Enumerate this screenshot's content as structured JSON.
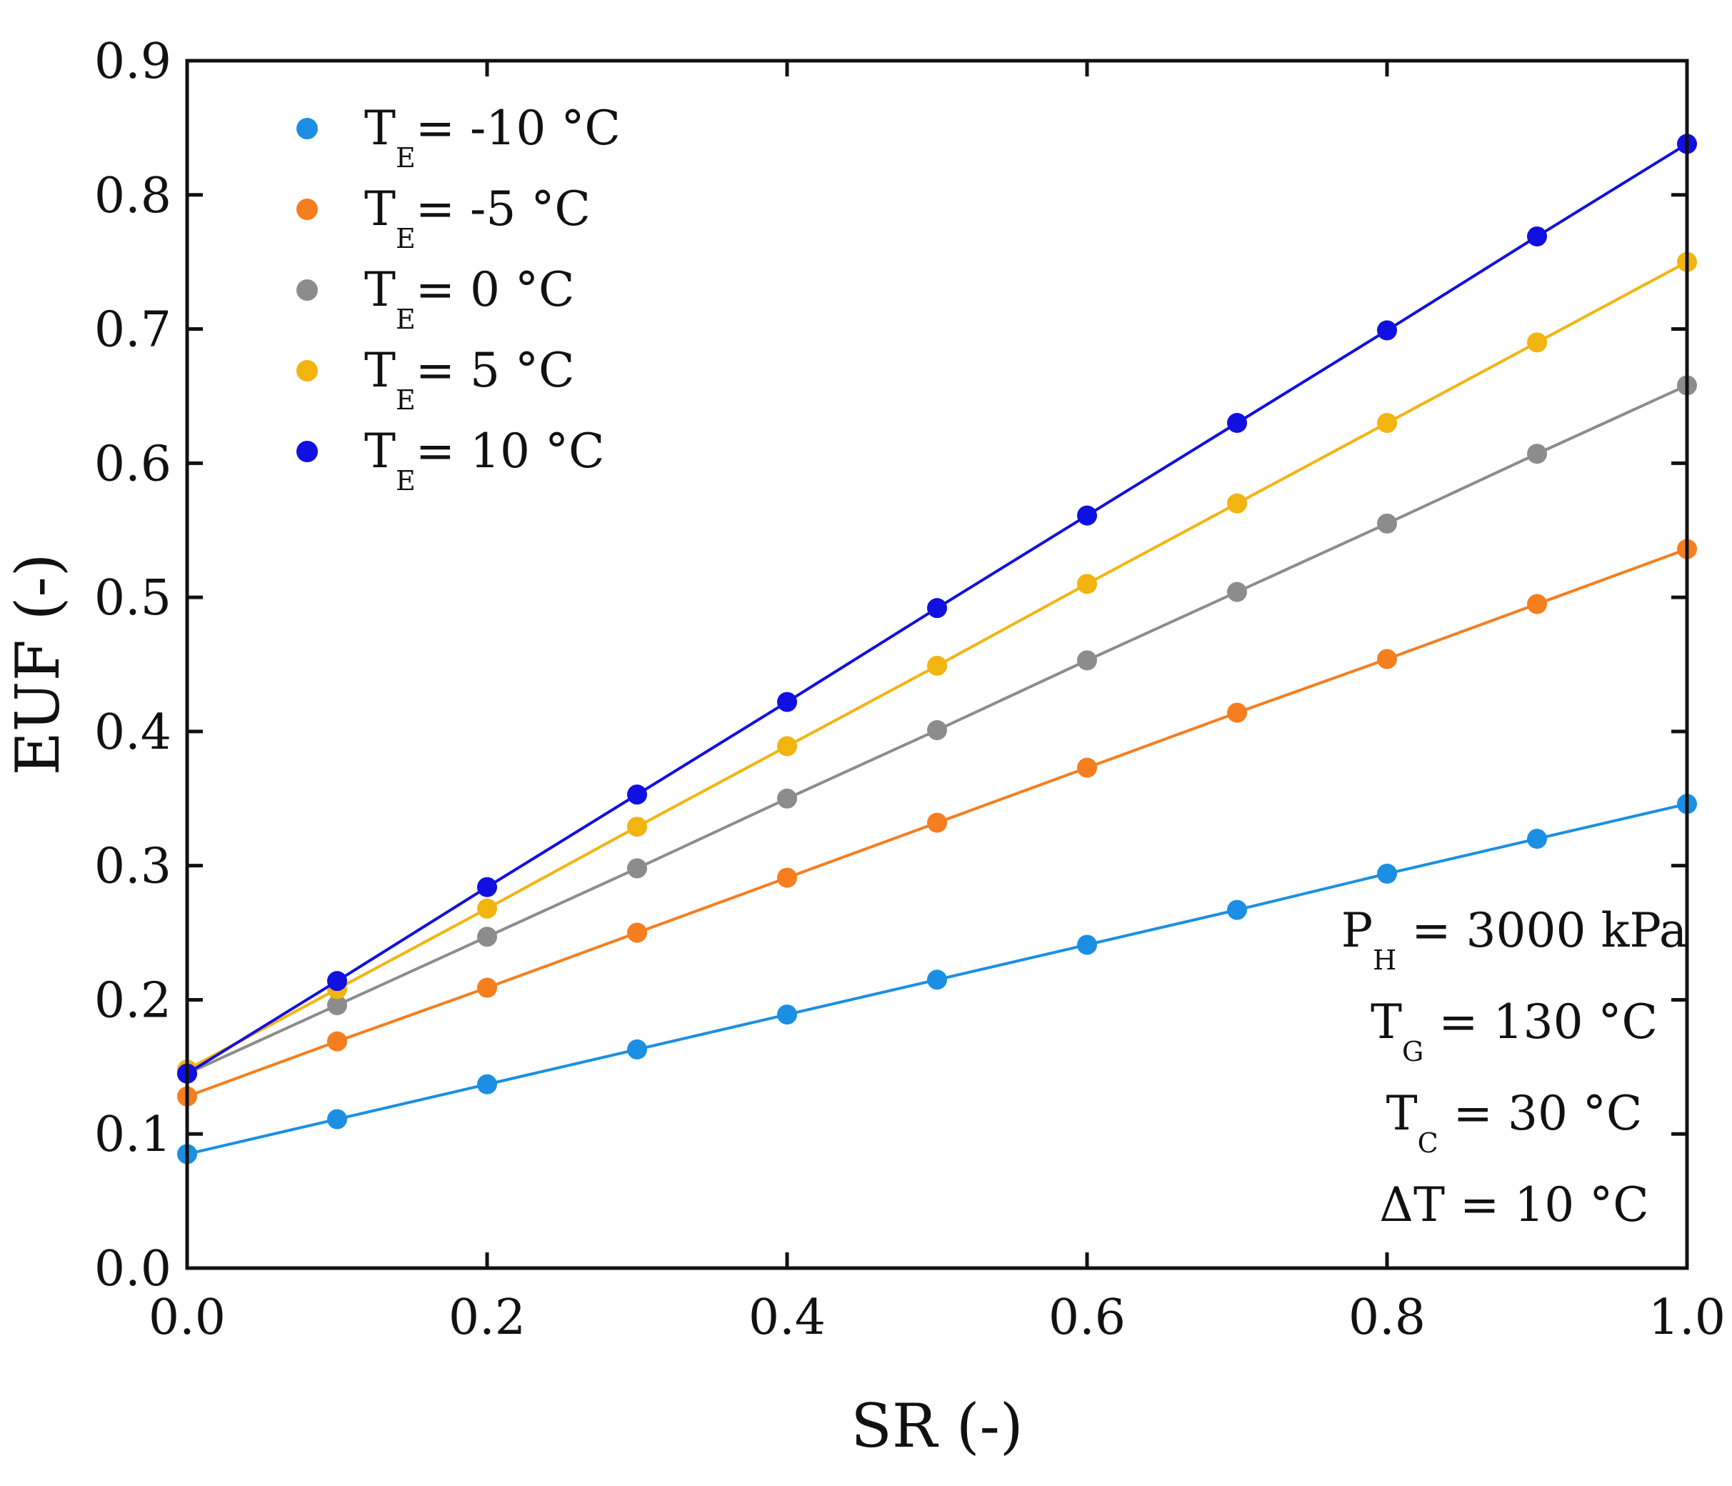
{
  "chart_data": {
    "type": "line",
    "xlabel": "SR (-)",
    "ylabel": "EUF (-)",
    "xlim": [
      0,
      1
    ],
    "ylim": [
      0,
      0.9
    ],
    "x_ticks": [
      "0.0",
      "0.2",
      "0.4",
      "0.6",
      "0.8",
      "1.0"
    ],
    "y_ticks": [
      "0.0",
      "0.1",
      "0.2",
      "0.3",
      "0.4",
      "0.5",
      "0.6",
      "0.7",
      "0.8",
      "0.9"
    ],
    "x": [
      0.0,
      0.1,
      0.2,
      0.3,
      0.4,
      0.5,
      0.6,
      0.7,
      0.8,
      0.9,
      1.0
    ],
    "series": [
      {
        "name": "T_E= -10 °C",
        "label_main": "T",
        "label_sub": "E",
        "label_rest": "= -10 °C",
        "color": "#1a8fe3",
        "values": [
          0.085,
          0.111,
          0.137,
          0.163,
          0.189,
          0.215,
          0.241,
          0.267,
          0.294,
          0.32,
          0.346
        ]
      },
      {
        "name": "T_E= -5 °C",
        "label_main": "T",
        "label_sub": "E",
        "label_rest": "= -5 °C",
        "color": "#f57e1f",
        "values": [
          0.128,
          0.169,
          0.209,
          0.25,
          0.291,
          0.332,
          0.373,
          0.414,
          0.454,
          0.495,
          0.536
        ]
      },
      {
        "name": "T_E= 0 °C",
        "label_main": "T",
        "label_sub": "E",
        "label_rest": "= 0 °C",
        "color": "#8c8c8c",
        "values": [
          0.145,
          0.196,
          0.247,
          0.298,
          0.35,
          0.401,
          0.453,
          0.504,
          0.555,
          0.607,
          0.658
        ]
      },
      {
        "name": "T_E= 5 °C",
        "label_main": "T",
        "label_sub": "E",
        "label_rest": "= 5 °C",
        "color": "#f2b40f",
        "values": [
          0.148,
          0.208,
          0.268,
          0.329,
          0.389,
          0.449,
          0.51,
          0.57,
          0.63,
          0.69,
          0.75
        ]
      },
      {
        "name": "T_E= 10 °C",
        "label_main": "T",
        "label_sub": "E",
        "label_rest": "= 10 °C",
        "color": "#1010e0",
        "values": [
          0.145,
          0.214,
          0.284,
          0.353,
          0.422,
          0.492,
          0.561,
          0.63,
          0.699,
          0.769,
          0.838
        ]
      }
    ],
    "legend_position": "top-left",
    "annotations": [
      {
        "main": "P",
        "sub": "H",
        "rest": " = 3000 kPa"
      },
      {
        "main": "T",
        "sub": "G",
        "rest": " = 130 °C"
      },
      {
        "main": "T",
        "sub": "C",
        "rest": " = 30 °C"
      },
      {
        "main": "ΔT",
        "sub": "",
        "rest": " = 10 °C"
      }
    ]
  }
}
